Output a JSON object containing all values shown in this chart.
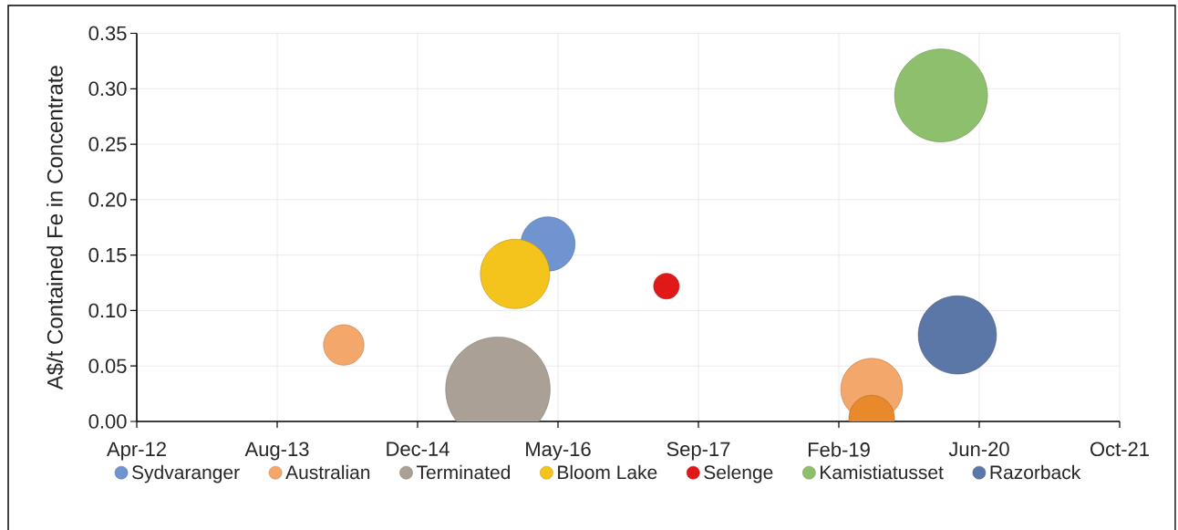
{
  "chart_data": {
    "type": "bubble",
    "ylabel": "A$/t Contained Fe in Concentrate",
    "xlim": [
      "2012-04-01",
      "2021-10-31"
    ],
    "xticks": [
      {
        "value": "2012-04-01",
        "label": "Apr-12"
      },
      {
        "value": "2013-08-14",
        "label": "Aug-13"
      },
      {
        "value": "2014-12-27",
        "label": "Dec-14"
      },
      {
        "value": "2016-05-10",
        "label": "May-16"
      },
      {
        "value": "2017-09-22",
        "label": "Sep-17"
      },
      {
        "value": "2019-02-04",
        "label": "Feb-19"
      },
      {
        "value": "2020-06-18",
        "label": "Jun-20"
      },
      {
        "value": "2021-10-31",
        "label": "Oct-21"
      }
    ],
    "ylim": [
      0,
      0.35
    ],
    "yticks": [
      {
        "value": 0,
        "label": "0.00"
      },
      0.05,
      {
        "value": 0.1,
        "label": "0.10"
      },
      0.15,
      {
        "value": 0.2,
        "label": "0.20"
      },
      0.25,
      {
        "value": 0.3,
        "label": "0.30"
      },
      0.35
    ],
    "grid": true,
    "legend": "bottom",
    "marker": "circle",
    "series": [
      {
        "name": "Sydvaranger",
        "color": "#6f94cf",
        "x": [
          "2016-04-04"
        ],
        "values": [
          0.16
        ],
        "sizes": [
          0.27
        ]
      },
      {
        "name": "Australian",
        "color": "#f3a76a",
        "colors": [
          "#f3a76a",
          "#f3a76a",
          "#e8892c"
        ],
        "x": [
          "2014-04-08",
          "2019-06-01",
          "2019-06-01"
        ],
        "values": [
          0.069,
          0.029,
          0.003
        ],
        "sizes": [
          0.15,
          0.35,
          0.19
        ]
      },
      {
        "name": "Terminated",
        "color": "#aaa096",
        "x": [
          "2015-10-09"
        ],
        "values": [
          0.029
        ],
        "sizes": [
          1
        ]
      },
      {
        "name": "Bloom Lake",
        "color": "#f4c31c",
        "x": [
          "2015-12-09"
        ],
        "values": [
          0.133
        ],
        "sizes": [
          0.44
        ]
      },
      {
        "name": "Selenge",
        "color": "#e01818",
        "x": [
          "2017-05-31"
        ],
        "values": [
          0.122
        ],
        "sizes": [
          0.06
        ]
      },
      {
        "name": "Kamistiatusset",
        "color": "#8dbf6c",
        "x": [
          "2020-02-03"
        ],
        "values": [
          0.294
        ],
        "sizes": [
          0.79
        ]
      },
      {
        "name": "Razorback",
        "color": "#5b77a8",
        "x": [
          "2020-04-01"
        ],
        "values": [
          0.078
        ],
        "sizes": [
          0.56
        ]
      }
    ]
  }
}
